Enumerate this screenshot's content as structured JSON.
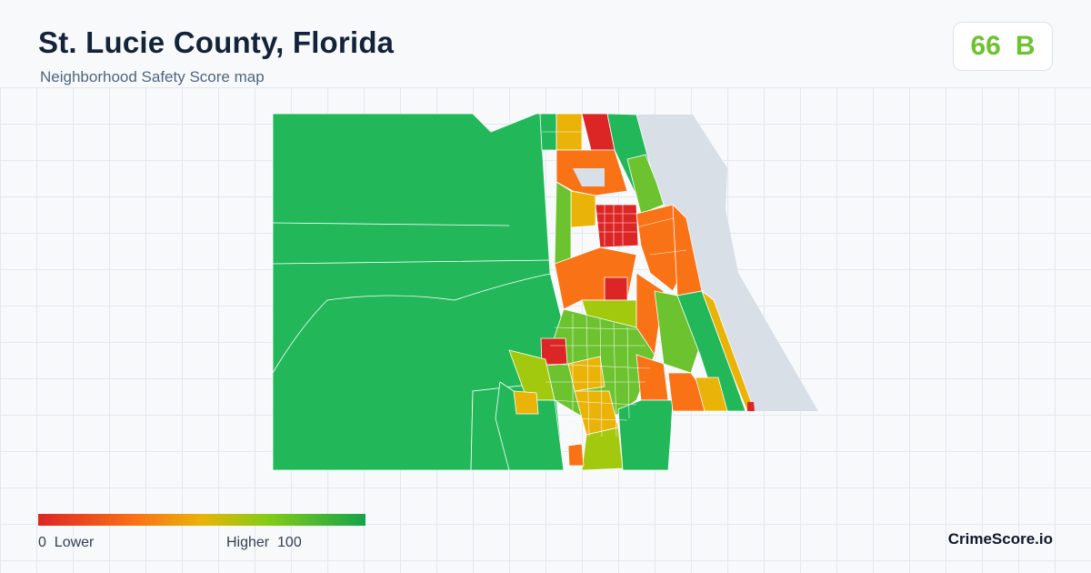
{
  "header": {
    "title": "St. Lucie County, Florida",
    "subtitle": "Neighborhood Safety Score map"
  },
  "score": {
    "value": "66",
    "grade": "B",
    "color": "#6cc32f"
  },
  "legend": {
    "min_value": "0",
    "min_label": "Lower",
    "max_label": "Higher",
    "max_value": "100",
    "low_color": "#dc2626",
    "high_color": "#16a34a"
  },
  "brand": "CrimeScore.io",
  "map": {
    "water_color": "#d8dfe7",
    "region_colors": [
      "#dc2626",
      "#f97316",
      "#eab308",
      "#a3c90f",
      "#6cc32f",
      "#22b85a"
    ]
  }
}
